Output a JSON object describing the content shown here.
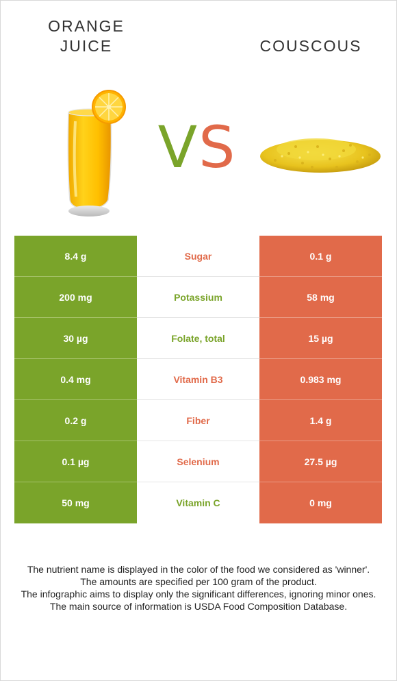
{
  "food_left": {
    "name": "Orange juice",
    "color": "#7aa42a"
  },
  "food_right": {
    "name": "Couscous",
    "color": "#e16a4a"
  },
  "vs": {
    "v": "V",
    "s": "S"
  },
  "colors": {
    "green": "#7aa42a",
    "orange": "#e16a4a",
    "white": "#ffffff"
  },
  "rows": [
    {
      "nutrient": "Sugar",
      "left": "8.4 g",
      "right": "0.1 g",
      "winner": "right"
    },
    {
      "nutrient": "Potassium",
      "left": "200 mg",
      "right": "58 mg",
      "winner": "left"
    },
    {
      "nutrient": "Folate, total",
      "left": "30 µg",
      "right": "15 µg",
      "winner": "left"
    },
    {
      "nutrient": "Vitamin B3",
      "left": "0.4 mg",
      "right": "0.983 mg",
      "winner": "right"
    },
    {
      "nutrient": "Fiber",
      "left": "0.2 g",
      "right": "1.4 g",
      "winner": "right"
    },
    {
      "nutrient": "Selenium",
      "left": "0.1 µg",
      "right": "27.5 µg",
      "winner": "right"
    },
    {
      "nutrient": "Vitamin C",
      "left": "50 mg",
      "right": "0 mg",
      "winner": "left"
    }
  ],
  "footer": {
    "line1": "The nutrient name is displayed in the color of the food we considered as 'winner'.",
    "line2": "The amounts are specified per 100 gram of the product.",
    "line3": "The infographic aims to display only the significant differences, ignoring minor ones.",
    "line4": "The main source of information is USDA Food Composition Database."
  }
}
